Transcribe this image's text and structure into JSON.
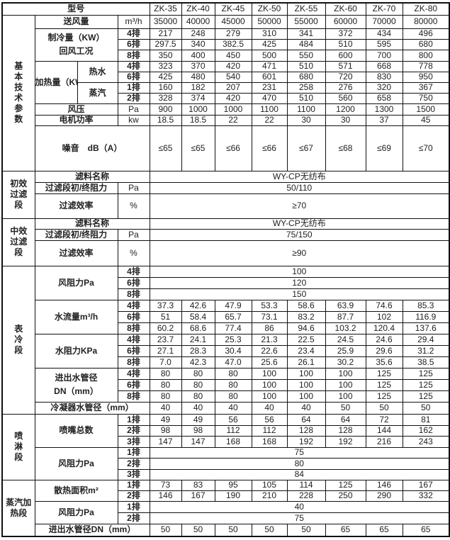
{
  "header_label": "型号",
  "models": [
    "ZK-35",
    "ZK-40",
    "ZK-45",
    "ZK-50",
    "ZK-55",
    "ZK-60",
    "ZK-70",
    "ZK-80"
  ],
  "sections": [
    {
      "title": [
        "基",
        "本",
        "技",
        "术",
        "参",
        "数"
      ],
      "groups": [
        {
          "label": "送风量",
          "unit": "m³/h",
          "values": [
            "35000",
            "40000",
            "45000",
            "50000",
            "55000",
            "60000",
            "70000",
            "80000"
          ]
        },
        {
          "label": "制冷量（KW）",
          "note": "回风工况",
          "rows": [
            {
              "unit": "4排",
              "values": [
                "217",
                "248",
                "279",
                "310",
                "341",
                "372",
                "434",
                "496"
              ]
            },
            {
              "unit": "6排",
              "values": [
                "297.5",
                "340",
                "382.5",
                "425",
                "484",
                "510",
                "595",
                "680"
              ]
            },
            {
              "unit": "8排",
              "values": [
                "350",
                "400",
                "450",
                "500",
                "550",
                "600",
                "700",
                "800"
              ]
            }
          ]
        },
        {
          "label": "加热量（KW）",
          "subgroups": [
            {
              "label": "热水",
              "rows": [
                {
                  "unit": "4排",
                  "values": [
                    "323",
                    "370",
                    "420",
                    "471",
                    "510",
                    "571",
                    "668",
                    "778"
                  ]
                },
                {
                  "unit": "6排",
                  "values": [
                    "425",
                    "480",
                    "540",
                    "601",
                    "680",
                    "720",
                    "830",
                    "950"
                  ]
                }
              ]
            },
            {
              "label": "蒸汽",
              "rows": [
                {
                  "unit": "1排",
                  "values": [
                    "160",
                    "182",
                    "207",
                    "231",
                    "258",
                    "276",
                    "320",
                    "367"
                  ]
                },
                {
                  "unit": "2排",
                  "values": [
                    "328",
                    "374",
                    "420",
                    "470",
                    "510",
                    "560",
                    "658",
                    "750"
                  ]
                }
              ]
            }
          ]
        },
        {
          "label": "风压",
          "unit": "Pa",
          "values": [
            "900",
            "1000",
            "1000",
            "1100",
            "1100",
            "1200",
            "1300",
            "1500"
          ]
        },
        {
          "label": "电机功率",
          "unit": "kw",
          "values": [
            "18.5",
            "18.5",
            "22",
            "22",
            "30",
            "30",
            "37",
            "45"
          ]
        },
        {
          "label": "噪音　dB（A）",
          "values": [
            "≤65",
            "≤65",
            "≤66",
            "≤66",
            "≤67",
            "≤68",
            "≤69",
            "≤70"
          ]
        }
      ]
    },
    {
      "title": [
        "初效",
        "过滤",
        "段"
      ],
      "groups": [
        {
          "label": "滤料名称",
          "value": "WY-CP无纺布"
        },
        {
          "label": "过滤段初/终阻力",
          "unit": "Pa",
          "value": "50/110"
        },
        {
          "label": "过滤效率",
          "unit": "%",
          "value": "≥70"
        }
      ]
    },
    {
      "title": [
        "中效",
        "过滤",
        "段"
      ],
      "groups": [
        {
          "label": "滤料名称",
          "value": "WY-CP无纺布"
        },
        {
          "label": "过滤段初/终阻力",
          "unit": "Pa",
          "value": "75/150"
        },
        {
          "label": "过滤效率",
          "unit": "%",
          "value": "≥90"
        }
      ]
    },
    {
      "title": [
        "表",
        "冷",
        "段"
      ],
      "groups": [
        {
          "label": "风阻力Pa",
          "rows": [
            {
              "unit": "4排",
              "value": "100"
            },
            {
              "unit": "6排",
              "value": "120"
            },
            {
              "unit": "8排",
              "value": "150"
            }
          ]
        },
        {
          "label": "水流量m³/h",
          "rows": [
            {
              "unit": "4排",
              "values": [
                "37.3",
                "42.6",
                "47.9",
                "53.3",
                "58.6",
                "63.9",
                "74.6",
                "85.3"
              ]
            },
            {
              "unit": "6排",
              "values": [
                "51",
                "58.4",
                "65.7",
                "73.1",
                "83.2",
                "87.7",
                "102",
                "116.9"
              ]
            },
            {
              "unit": "8排",
              "values": [
                "60.2",
                "68.6",
                "77.4",
                "86",
                "94.6",
                "103.2",
                "120.4",
                "137.6"
              ]
            }
          ]
        },
        {
          "label": "水阻力KPa",
          "rows": [
            {
              "unit": "4排",
              "values": [
                "23.7",
                "24.1",
                "25.3",
                "21.3",
                "22.5",
                "24.5",
                "24.6",
                "29.4"
              ]
            },
            {
              "unit": "6排",
              "values": [
                "27.1",
                "28.3",
                "30.4",
                "22.6",
                "23.4",
                "25.9",
                "29.6",
                "31.2"
              ]
            },
            {
              "unit": "8排",
              "values": [
                "7.0",
                "42.3",
                "47.0",
                "25.6",
                "26.1",
                "30.2",
                "35.6",
                "38.5"
              ]
            }
          ]
        },
        {
          "label": "进出水管径",
          "note": "DN（mm）",
          "rows": [
            {
              "unit": "4排",
              "values": [
                "80",
                "80",
                "80",
                "100",
                "100",
                "100",
                "125",
                "125"
              ]
            },
            {
              "unit": "6排",
              "values": [
                "80",
                "80",
                "80",
                "100",
                "100",
                "100",
                "125",
                "125"
              ]
            },
            {
              "unit": "8排",
              "values": [
                "80",
                "80",
                "80",
                "100",
                "100",
                "100",
                "125",
                "125"
              ]
            }
          ]
        },
        {
          "label": "冷凝器水管径（mm）",
          "values": [
            "40",
            "40",
            "40",
            "40",
            "40",
            "50",
            "50",
            "50"
          ]
        }
      ]
    },
    {
      "title": [
        "喷",
        "淋",
        "段"
      ],
      "groups": [
        {
          "label": "喷嘴总数",
          "rows": [
            {
              "unit": "1排",
              "values": [
                "49",
                "49",
                "56",
                "56",
                "64",
                "64",
                "72",
                "81"
              ]
            },
            {
              "unit": "2排",
              "values": [
                "98",
                "98",
                "112",
                "112",
                "128",
                "128",
                "144",
                "162"
              ]
            },
            {
              "unit": "3排",
              "values": [
                "147",
                "147",
                "168",
                "168",
                "192",
                "192",
                "216",
                "243"
              ]
            }
          ]
        },
        {
          "label": "风阻力Pa",
          "rows": [
            {
              "unit": "1排",
              "value": "75"
            },
            {
              "unit": "2排",
              "value": "80"
            },
            {
              "unit": "3排",
              "value": "84"
            }
          ]
        }
      ]
    },
    {
      "title": [
        "蒸汽加",
        "热段"
      ],
      "groups": [
        {
          "label": "散热面积m²",
          "rows": [
            {
              "unit": "1排",
              "values": [
                "73",
                "83",
                "95",
                "105",
                "114",
                "125",
                "146",
                "167"
              ]
            },
            {
              "unit": "2排",
              "values": [
                "146",
                "167",
                "190",
                "210",
                "228",
                "250",
                "290",
                "332"
              ]
            }
          ]
        },
        {
          "label": "风阻力Pa",
          "rows": [
            {
              "unit": "1排",
              "value": "40"
            },
            {
              "unit": "2排",
              "value": "75"
            }
          ]
        },
        {
          "label": "进出水管径DN（mm）",
          "values": [
            "50",
            "50",
            "50",
            "50",
            "50",
            "65",
            "65",
            "65"
          ]
        }
      ]
    }
  ]
}
